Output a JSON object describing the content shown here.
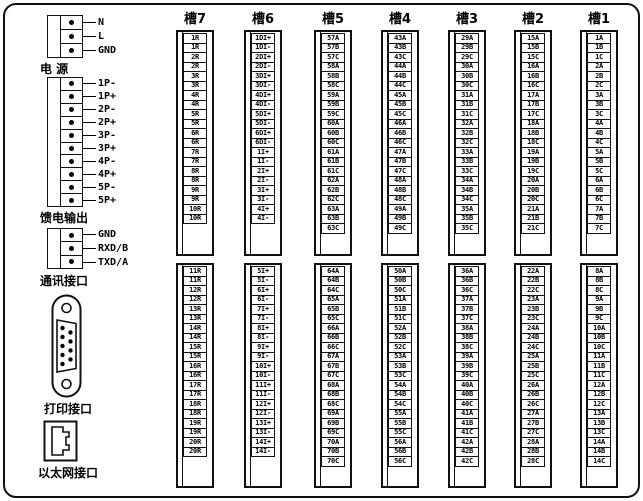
{
  "panel": {
    "left": {
      "power": {
        "caption": "电 源",
        "pins": [
          "N",
          "L",
          "GND"
        ]
      },
      "feed": {
        "caption": "馈电输出",
        "pins": [
          "1P-",
          "1P+",
          "2P-",
          "2P+",
          "3P-",
          "3P+",
          "4P-",
          "4P+",
          "5P-",
          "5P+"
        ]
      },
      "comm": {
        "caption": "通讯接口",
        "pins": [
          "GND",
          "RXD/B",
          "TXD/A"
        ]
      },
      "printer": {
        "caption": "打印接口",
        "icon": "db9-connector-icon"
      },
      "ethernet": {
        "caption": "以太网接口",
        "icon": "rj45-connector-icon"
      }
    },
    "slots": [
      {
        "name": "槽7",
        "top": [
          "1R",
          "1R",
          "2R",
          "2R",
          "3R",
          "3R",
          "4R",
          "4R",
          "5R",
          "5R",
          "6R",
          "6R",
          "7R",
          "7R",
          "8R",
          "8R",
          "9R",
          "9R",
          "10R",
          "10R"
        ],
        "bottom": [
          "11R",
          "11R",
          "12R",
          "12R",
          "13R",
          "13R",
          "14R",
          "14R",
          "15R",
          "15R",
          "16R",
          "16R",
          "17R",
          "17R",
          "18R",
          "18R",
          "19R",
          "19R",
          "20R",
          "20R"
        ]
      },
      {
        "name": "槽6",
        "top": [
          "1DI+",
          "1DI-",
          "2DI+",
          "2DI-",
          "3DI+",
          "3DI-",
          "4DI+",
          "4DI-",
          "5DI+",
          "5DI-",
          "6DI+",
          "6DI-",
          "1I+",
          "1I-",
          "2I+",
          "2I-",
          "3I+",
          "3I-",
          "4I+",
          "4I-"
        ],
        "bottom": [
          "5I+",
          "5I-",
          "6I+",
          "6I-",
          "7I+",
          "7I-",
          "8I+",
          "8I-",
          "9I+",
          "9I-",
          "10I+",
          "10I-",
          "11I+",
          "11I-",
          "12I+",
          "12I-",
          "13I+",
          "13I-",
          "14I+",
          "14I-"
        ]
      },
      {
        "name": "槽5",
        "top": [
          "57A",
          "57B",
          "57C",
          "58A",
          "58B",
          "58C",
          "59A",
          "59B",
          "59C",
          "60A",
          "60B",
          "60C",
          "61A",
          "61B",
          "61C",
          "62A",
          "62B",
          "62C",
          "63A",
          "63B",
          "63C"
        ],
        "bottom": [
          "64A",
          "64B",
          "64C",
          "65A",
          "65B",
          "65C",
          "66A",
          "66B",
          "66C",
          "67A",
          "67B",
          "67C",
          "68A",
          "68B",
          "68C",
          "69A",
          "69B",
          "69C",
          "70A",
          "70B",
          "70C"
        ]
      },
      {
        "name": "槽4",
        "top": [
          "43A",
          "43B",
          "43C",
          "44A",
          "44B",
          "44C",
          "45A",
          "45B",
          "45C",
          "46A",
          "46B",
          "46C",
          "47A",
          "47B",
          "47C",
          "48A",
          "48B",
          "48C",
          "49A",
          "49B",
          "49C"
        ],
        "bottom": [
          "50A",
          "50B",
          "50C",
          "51A",
          "51B",
          "51C",
          "52A",
          "52B",
          "52C",
          "53A",
          "53B",
          "53C",
          "54A",
          "54B",
          "54C",
          "55A",
          "55B",
          "55C",
          "56A",
          "56B",
          "56C"
        ]
      },
      {
        "name": "槽3",
        "top": [
          "29A",
          "29B",
          "29C",
          "30A",
          "30B",
          "30C",
          "31A",
          "31B",
          "31C",
          "32A",
          "32B",
          "32C",
          "33A",
          "33B",
          "33C",
          "34A",
          "34B",
          "34C",
          "35A",
          "35B",
          "35C"
        ],
        "bottom": [
          "36A",
          "36B",
          "36C",
          "37A",
          "37B",
          "37C",
          "38A",
          "38B",
          "38C",
          "39A",
          "39B",
          "39C",
          "40A",
          "40B",
          "40C",
          "41A",
          "41B",
          "41C",
          "42A",
          "42B",
          "42C"
        ]
      },
      {
        "name": "槽2",
        "top": [
          "15A",
          "15B",
          "15C",
          "16A",
          "16B",
          "16C",
          "17A",
          "17B",
          "17C",
          "18A",
          "18B",
          "18C",
          "19A",
          "19B",
          "19C",
          "20A",
          "20B",
          "20C",
          "21A",
          "21B",
          "21C"
        ],
        "bottom": [
          "22A",
          "22B",
          "22C",
          "23A",
          "23B",
          "23C",
          "24A",
          "24B",
          "24C",
          "25A",
          "25B",
          "25C",
          "26A",
          "26B",
          "26C",
          "27A",
          "27B",
          "27C",
          "28A",
          "28B",
          "28C"
        ]
      },
      {
        "name": "槽1",
        "top": [
          "1A",
          "1B",
          "1C",
          "2A",
          "2B",
          "2C",
          "3A",
          "3B",
          "3C",
          "4A",
          "4B",
          "4C",
          "5A",
          "5B",
          "5C",
          "6A",
          "6B",
          "6C",
          "7A",
          "7B",
          "7C"
        ],
        "bottom": [
          "8A",
          "8B",
          "8C",
          "9A",
          "9B",
          "9C",
          "10A",
          "10B",
          "10C",
          "11A",
          "11B",
          "11C",
          "12A",
          "12B",
          "12C",
          "13A",
          "13B",
          "13C",
          "14A",
          "14B",
          "14C"
        ]
      }
    ],
    "colors": {
      "line": "#111111",
      "background": "#ffffff"
    }
  }
}
